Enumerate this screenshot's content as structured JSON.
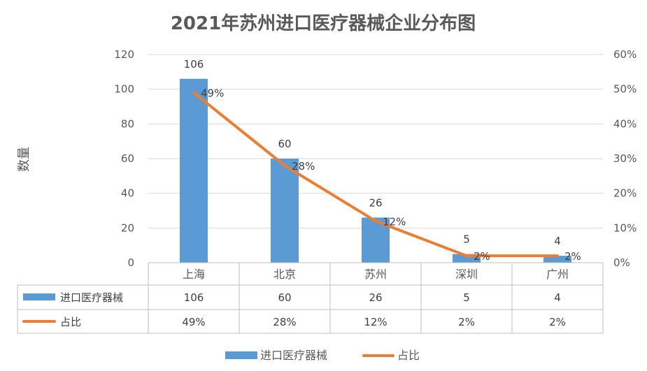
{
  "chart_data": {
    "type": "bar",
    "title": "2021年苏州进口医疗器械企业分布图",
    "categories": [
      "上海",
      "北京",
      "苏州",
      "深圳",
      "广州"
    ],
    "series": [
      {
        "name": "进口医疗器械",
        "type": "bar",
        "axis": "left",
        "color": "#5b9bd5",
        "values": [
          106,
          60,
          26,
          5,
          4
        ],
        "labels": [
          "106",
          "60",
          "26",
          "5",
          "4"
        ]
      },
      {
        "name": "占比",
        "type": "line",
        "axis": "right",
        "color": "#ed7d31",
        "values": [
          49,
          28,
          12,
          2,
          2
        ],
        "labels": [
          "49%",
          "28%",
          "12%",
          "2%",
          "2%"
        ]
      }
    ],
    "ylabel": "数量",
    "ylim": [
      0,
      120
    ],
    "y_ticks": [
      "0",
      "20",
      "40",
      "60",
      "80",
      "100",
      "120"
    ],
    "y2lim": [
      0,
      60
    ],
    "y2_ticks": [
      "0%",
      "10%",
      "20%",
      "30%",
      "40%",
      "50%",
      "60%"
    ],
    "grid": true,
    "data_table": true,
    "legend": "bottom"
  }
}
